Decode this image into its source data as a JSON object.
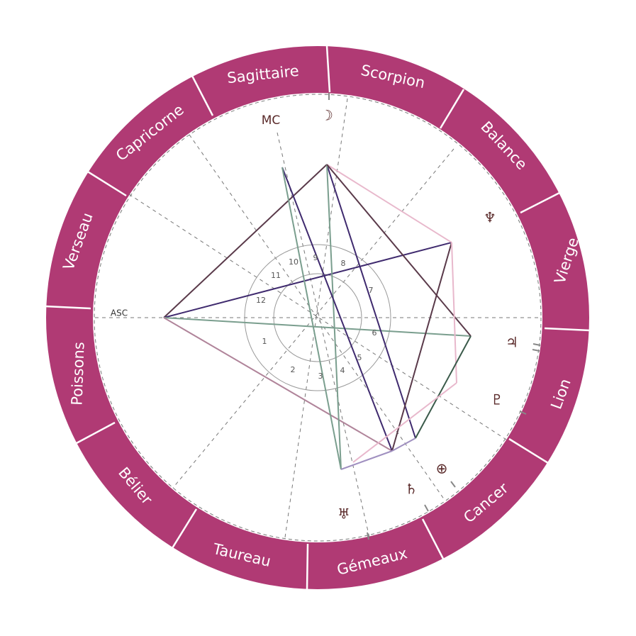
{
  "colors": {
    "ring": "#b03a74",
    "ring_divider": "#ffffff",
    "dashed": "#777777",
    "glyph": "#5a2a2a"
  },
  "signs": [
    "Sagittaire",
    "Scorpion",
    "Balance",
    "Vierge",
    "Lion",
    "Cancer",
    "Gémeaux",
    "Taureau",
    "Bélier",
    "Poissons",
    "Verseau",
    "Capricorne"
  ],
  "houses": [
    "1",
    "2",
    "3",
    "4",
    "5",
    "6",
    "7",
    "8",
    "9",
    "10",
    "11",
    "12"
  ],
  "axes": {
    "asc": "ASC",
    "mc": "MC"
  },
  "planets": [
    {
      "name": "moon-glyph",
      "symbol": "☽"
    },
    {
      "name": "neptune-glyph",
      "symbol": "♆"
    },
    {
      "name": "jupiter-glyph",
      "symbol": "♃"
    },
    {
      "name": "pluto-glyph",
      "symbol": "♇"
    },
    {
      "name": "sun-venus-cluster-glyph",
      "symbol": "⊕"
    },
    {
      "name": "saturn-glyph",
      "symbol": "♄"
    },
    {
      "name": "uranus-glyph",
      "symbol": "♅"
    }
  ]
}
